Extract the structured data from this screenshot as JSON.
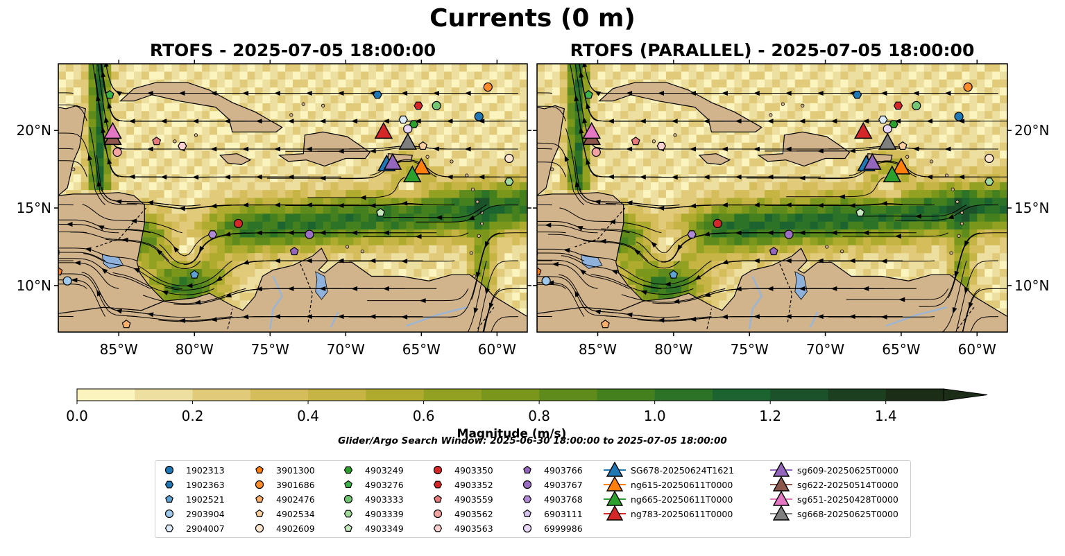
{
  "title": "Currents (0 m)",
  "panels": [
    {
      "title": "RTOFS - 2025-07-05 18:00:00"
    },
    {
      "title": "RTOFS (PARALLEL) - 2025-07-05 18:00:00"
    }
  ],
  "map": {
    "projection": "PlateCarree",
    "lon_range": [
      -89.0,
      -58.0
    ],
    "lat_range": [
      7.0,
      24.3
    ],
    "lon_ticks": [
      {
        "value": -85,
        "label": "85°W"
      },
      {
        "value": -80,
        "label": "80°W"
      },
      {
        "value": -75,
        "label": "75°W"
      },
      {
        "value": -70,
        "label": "70°W"
      },
      {
        "value": -65,
        "label": "65°W"
      },
      {
        "value": -60,
        "label": "60°W"
      }
    ],
    "lat_ticks": [
      {
        "value": 20,
        "label": "20°N"
      },
      {
        "value": 15,
        "label": "15°N"
      },
      {
        "value": 10,
        "label": "10°N"
      }
    ],
    "land_color": "#d2b48c",
    "lake_color": "#8fb2dd",
    "river_color": "#9bb5d6"
  },
  "colorbar": {
    "label": "Magnitude (m/s)",
    "min": 0.0,
    "max": 1.5,
    "step": 0.1,
    "extend": "max",
    "ticks": [
      {
        "value": 0.0,
        "label": "0.0"
      },
      {
        "value": 0.2,
        "label": "0.2"
      },
      {
        "value": 0.4,
        "label": "0.4"
      },
      {
        "value": 0.6,
        "label": "0.6"
      },
      {
        "value": 0.8,
        "label": "0.8"
      },
      {
        "value": 1.0,
        "label": "1.0"
      },
      {
        "value": 1.2,
        "label": "1.2"
      },
      {
        "value": 1.4,
        "label": "1.4"
      }
    ],
    "colors": [
      "#fbf4bf",
      "#eddfa0",
      "#e1cb7a",
      "#d5bd5c",
      "#c6b444",
      "#aeab2e",
      "#92a122",
      "#7a971b",
      "#5f8b1c",
      "#45801f",
      "#2d7327",
      "#1b6430",
      "#1b5229",
      "#1c3f20",
      "#1b2c17"
    ]
  },
  "search_window": "Glider/Argo Search Window: 2025-06-30 18:00:00 to 2025-07-05 18:00:00",
  "floats": [
    {
      "id": "1902313",
      "marker": "circle",
      "color": "#1f77b4",
      "lon": -61.2,
      "lat": 20.9
    },
    {
      "id": "1902363",
      "marker": "hexagon",
      "color": "#1f77b4",
      "lon": -67.9,
      "lat": 22.3
    },
    {
      "id": "1902521",
      "marker": "pentagon",
      "color": "#5fa2d4",
      "lon": -80.0,
      "lat": 10.7
    },
    {
      "id": "2903904",
      "marker": "circle",
      "color": "#9fc8ea",
      "lon": -88.4,
      "lat": 10.3
    },
    {
      "id": "2904007",
      "marker": "hexagon",
      "color": "#dcebf8",
      "lon": -66.2,
      "lat": 20.7
    },
    {
      "id": "3901300",
      "marker": "pentagon",
      "color": "#ff7f0e",
      "lon": -89.0,
      "lat": 10.9
    },
    {
      "id": "3901686",
      "marker": "circle",
      "color": "#ff8c2a",
      "lon": -60.6,
      "lat": 22.8
    },
    {
      "id": "4902476",
      "marker": "pentagon",
      "color": "#fdae6b",
      "lon": -84.5,
      "lat": 7.5
    },
    {
      "id": "4902534",
      "marker": "pentagon",
      "color": "#fdd0a2",
      "lon": -64.9,
      "lat": 19.0
    },
    {
      "id": "4902609",
      "marker": "circle",
      "color": "#fee6ce",
      "lon": -59.2,
      "lat": 18.2
    },
    {
      "id": "4903249",
      "marker": "hexagon",
      "color": "#2ca02c",
      "lon": -65.5,
      "lat": 20.4
    },
    {
      "id": "4903276",
      "marker": "pentagon",
      "color": "#3cb44b",
      "lon": -85.6,
      "lat": 22.3
    },
    {
      "id": "4903333",
      "marker": "circle",
      "color": "#74c476",
      "lon": -64.0,
      "lat": 21.6
    },
    {
      "id": "4903339",
      "marker": "hexagon",
      "color": "#a1d99b",
      "lon": -59.2,
      "lat": 16.7
    },
    {
      "id": "4903349",
      "marker": "pentagon",
      "color": "#c7e9c0",
      "lon": -67.7,
      "lat": 14.7
    },
    {
      "id": "4903350",
      "marker": "circle",
      "color": "#d62728",
      "lon": -77.1,
      "lat": 14.0
    },
    {
      "id": "4903352",
      "marker": "hexagon",
      "color": "#d62728",
      "lon": -65.2,
      "lat": 21.6
    },
    {
      "id": "4903559",
      "marker": "pentagon",
      "color": "#e87b7b",
      "lon": -82.5,
      "lat": 19.3
    },
    {
      "id": "4903562",
      "marker": "circle",
      "color": "#f4a3a3",
      "lon": -85.1,
      "lat": 18.6
    },
    {
      "id": "4903563",
      "marker": "hexagon",
      "color": "#fbd0d0",
      "lon": -80.8,
      "lat": 19.0
    },
    {
      "id": "4903766",
      "marker": "pentagon",
      "color": "#9467bd",
      "lon": -73.4,
      "lat": 12.2
    },
    {
      "id": "4903767",
      "marker": "circle",
      "color": "#9c6fc4",
      "lon": -72.4,
      "lat": 13.3
    },
    {
      "id": "4903768",
      "marker": "hexagon",
      "color": "#b08ad6",
      "lon": -78.8,
      "lat": 13.3
    },
    {
      "id": "6903111",
      "marker": "pentagon",
      "color": "#d7c2ee",
      "lon": -66.9,
      "lat": 18.0
    },
    {
      "id": "6999986",
      "marker": "circle",
      "color": "#e8d6f8",
      "lon": -65.9,
      "lat": 20.1
    }
  ],
  "gliders": [
    {
      "id": "SG678-20250624T1621",
      "color": "#1f77b4",
      "lon": -67.3,
      "lat": 17.8
    },
    {
      "id": "ng615-20250611T0000",
      "color": "#ff7f0e",
      "lon": -65.0,
      "lat": 17.6
    },
    {
      "id": "ng665-20250611T0000",
      "color": "#2ca02c",
      "lon": -65.6,
      "lat": 17.1
    },
    {
      "id": "ng783-20250611T0000",
      "color": "#d62728",
      "lon": -67.5,
      "lat": 19.9
    },
    {
      "id": "sg609-20250625T0000",
      "color": "#9467bd",
      "lon": -66.9,
      "lat": 17.9
    },
    {
      "id": "sg622-20250514T0000",
      "color": "#8c564b",
      "lon": -85.4,
      "lat": 19.5
    },
    {
      "id": "sg651-20250428T0000",
      "color": "#e377c2",
      "lon": -85.4,
      "lat": 19.9
    },
    {
      "id": "sg668-20250625T0000",
      "color": "#7f7f7f",
      "lon": -65.9,
      "lat": 19.2
    }
  ]
}
